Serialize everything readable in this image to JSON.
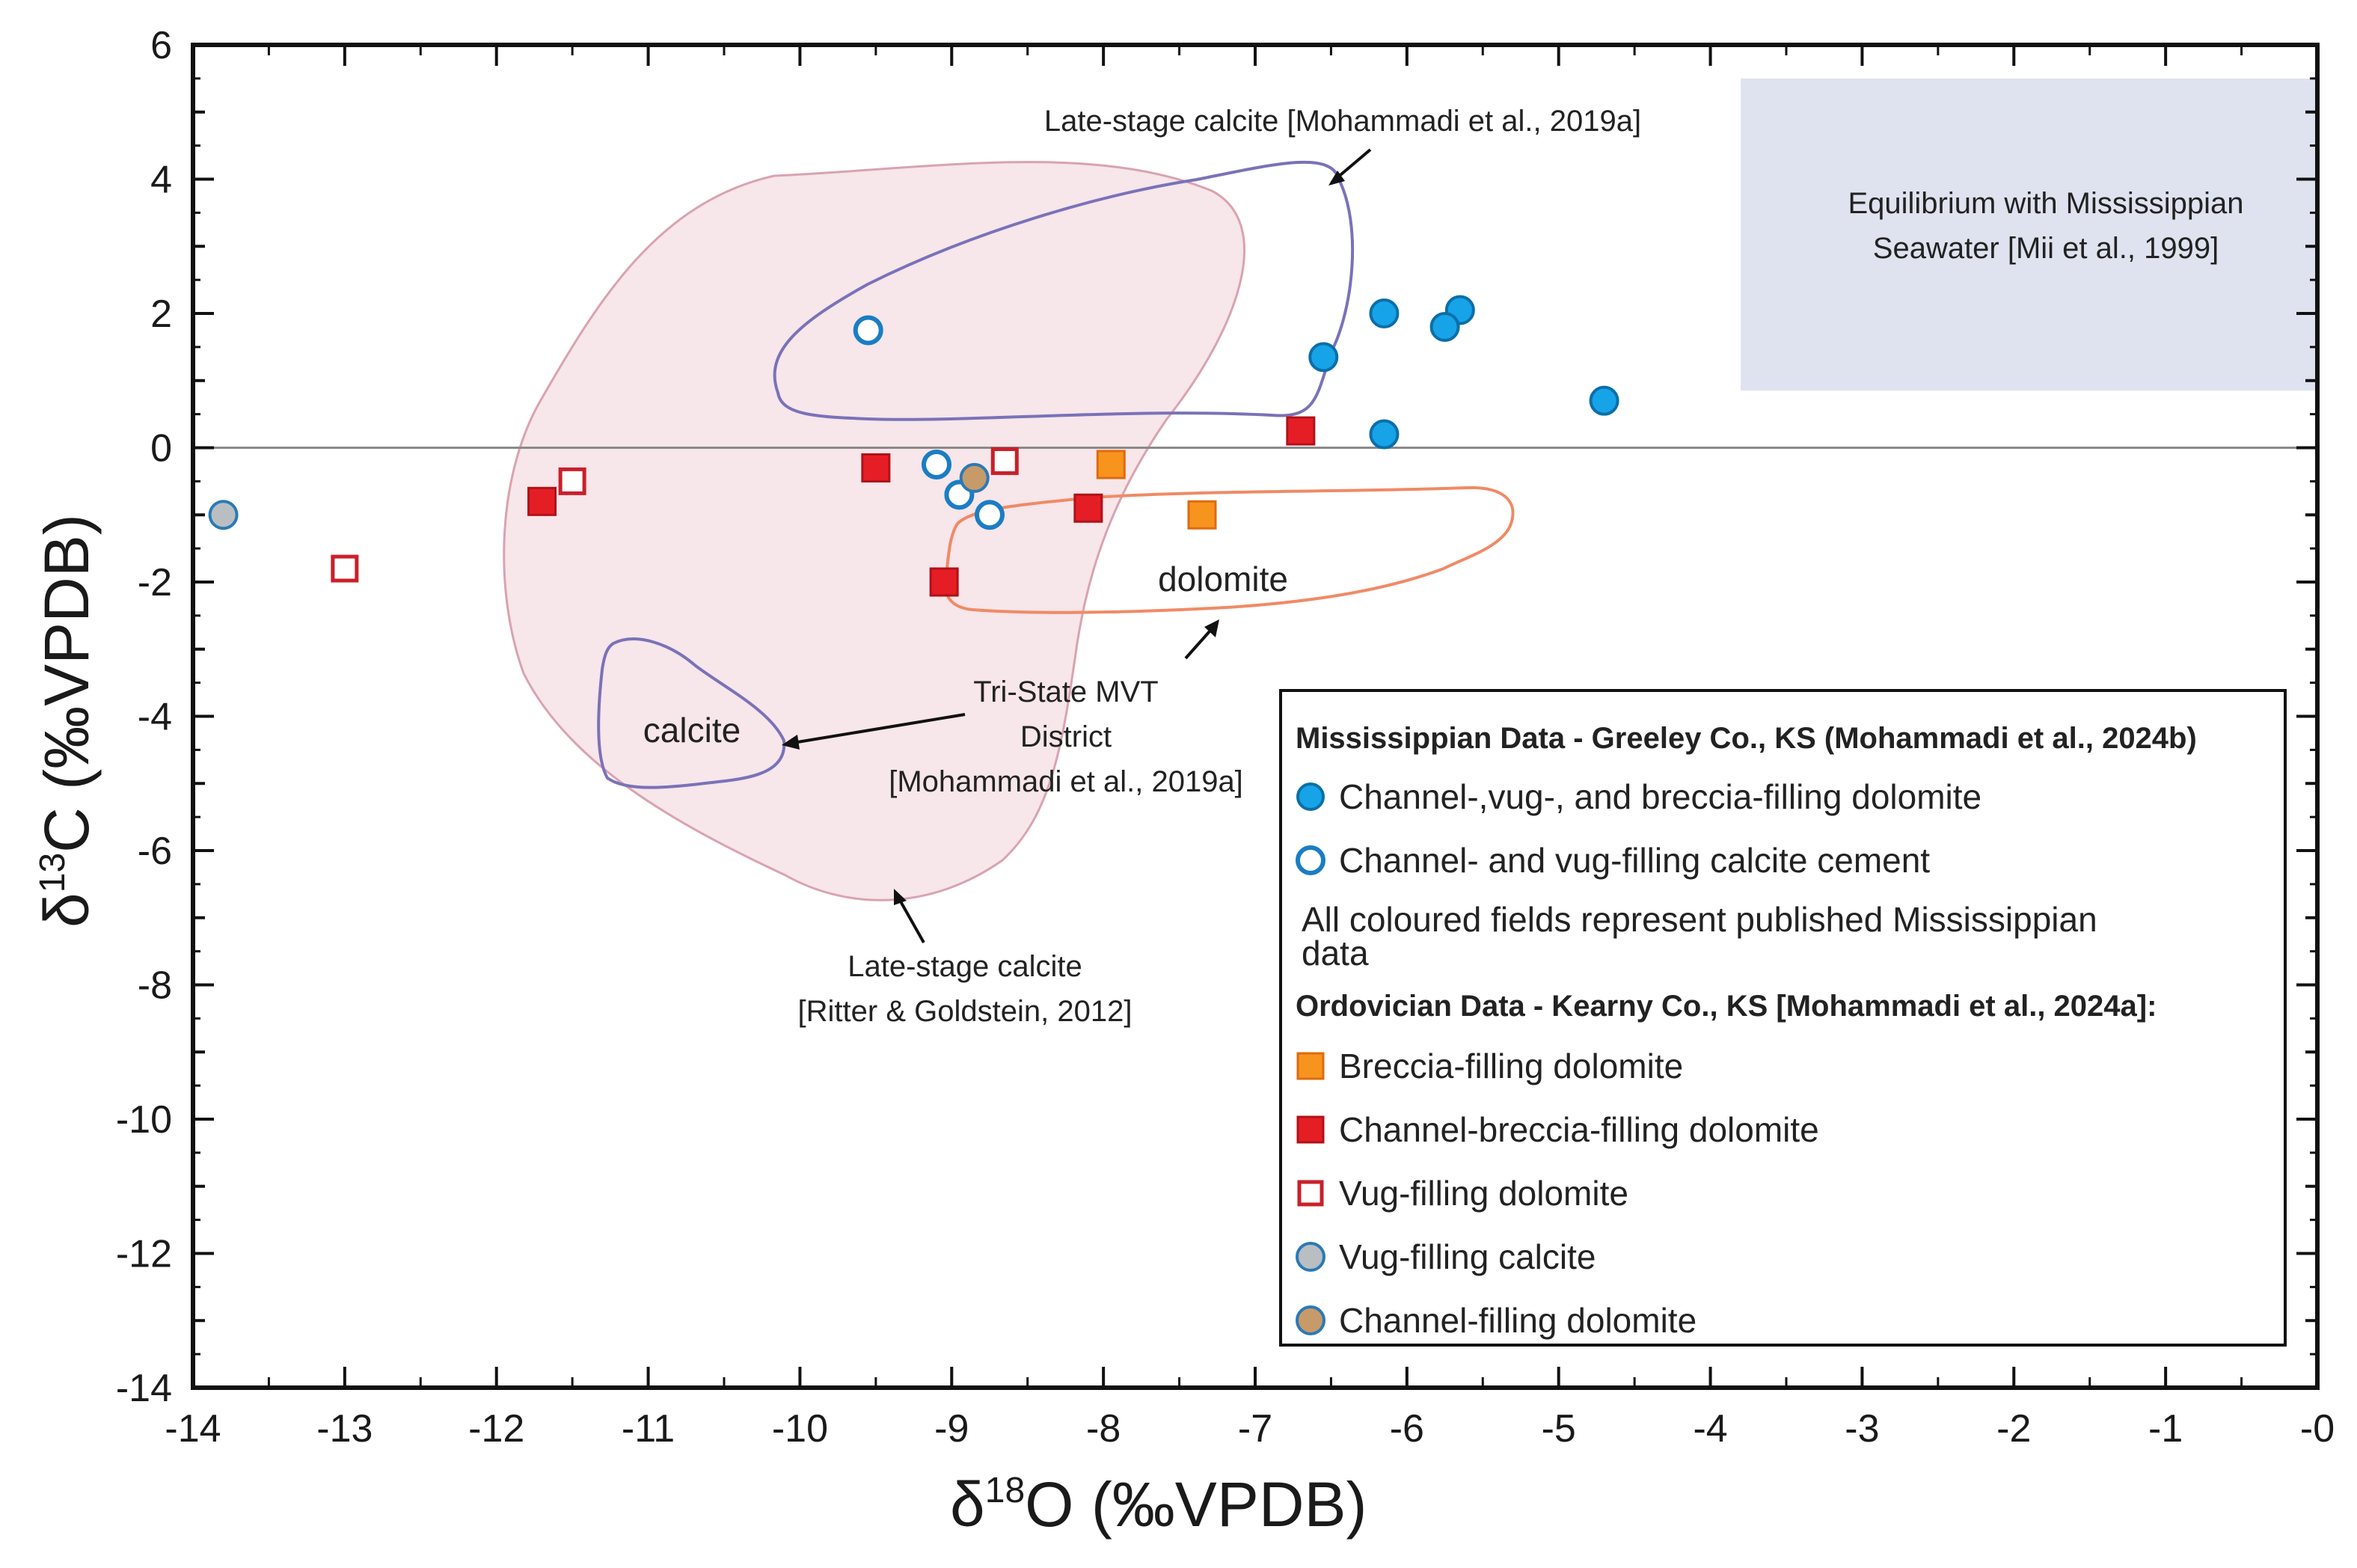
{
  "chart_data": {
    "type": "scatter",
    "xlabel": "δ18O (‰VPDB)",
    "ylabel": "δ13C (‰VPDB)",
    "xlabel_parts": {
      "delta": "δ",
      "sup": "18",
      "rest": "O (‰VPDB)"
    },
    "ylabel_parts": {
      "delta": "δ",
      "sup": "13",
      "rest": "C (‰VPDB)"
    },
    "xlim": [
      -14,
      0
    ],
    "ylim": [
      -14,
      6
    ],
    "xticks": [
      "-14",
      "-13",
      "-12",
      "-11",
      "-10",
      "-9",
      "-8",
      "-7",
      "-6",
      "-5",
      "-4",
      "-3",
      "-2",
      "-1",
      "-0"
    ],
    "yticks": [
      "-14",
      "-12",
      "-10",
      "-8",
      "-6",
      "-4",
      "-2",
      "0",
      "2",
      "4",
      "6"
    ],
    "zero_line": 0,
    "regions": {
      "seawater_box": {
        "x": [
          -3.8,
          0
        ],
        "y": [
          0.85,
          5.5
        ],
        "label_line1": "Equilibrium with Mississippian",
        "label_line2": "Seawater [Mii et al., 1999]"
      },
      "late_calcite_ritter": {
        "label_line1": "Late-stage calcite",
        "label_line2": "[Ritter & Goldstein, 2012]"
      },
      "late_calcite_mohammadi": {
        "label": "Late-stage calcite [Mohammadi et al., 2019a]"
      },
      "calcite_field": {
        "label": "calcite"
      },
      "dolomite_field": {
        "label": "dolomite"
      },
      "tristate_label": {
        "line1": "Tri-State MVT",
        "line2": "District",
        "line3": "[Mohammadi et al., 2019a]"
      }
    },
    "series": [
      {
        "name": "Channel-,vug-, and breccia-filling dolomite",
        "marker": "circle",
        "fill": "#17a3e8",
        "stroke": "#0b6fa8",
        "points": [
          [
            -6.15,
            2.0
          ],
          [
            -5.65,
            2.05
          ],
          [
            -5.75,
            1.8
          ],
          [
            -6.55,
            1.35
          ],
          [
            -6.15,
            0.2
          ],
          [
            -4.7,
            0.7
          ]
        ]
      },
      {
        "name": "Channel- and vug-filling calcite cement",
        "marker": "circle-open",
        "fill": "#ffffff",
        "stroke": "#1a7dc4",
        "points": [
          [
            -9.55,
            1.75
          ],
          [
            -9.1,
            -0.25
          ],
          [
            -8.95,
            -0.7
          ],
          [
            -8.75,
            -1.0
          ]
        ]
      },
      {
        "name": "Breccia-filling dolomite",
        "marker": "square",
        "fill": "#f7941d",
        "stroke": "#e06a10",
        "points": [
          [
            -7.95,
            -0.25
          ],
          [
            -7.35,
            -1.0
          ]
        ]
      },
      {
        "name": "Channel-breccia-filling dolomite",
        "marker": "square",
        "fill": "#e51e25",
        "stroke": "#b01218",
        "points": [
          [
            -11.7,
            -0.8
          ],
          [
            -9.5,
            -0.3
          ],
          [
            -8.1,
            -0.9
          ],
          [
            -9.05,
            -2.0
          ],
          [
            -6.7,
            0.25
          ]
        ]
      },
      {
        "name": "Vug-filling dolomite",
        "marker": "square-open",
        "fill": "#ffffff",
        "stroke": "#c9202a",
        "points": [
          [
            -11.5,
            -0.5
          ],
          [
            -13.0,
            -1.8
          ],
          [
            -8.65,
            -0.2
          ]
        ]
      },
      {
        "name": "Vug-filling calcite",
        "marker": "circle",
        "fill": "#b9bec2",
        "stroke": "#2a7ab5",
        "points": [
          [
            -13.8,
            -1.0
          ]
        ]
      },
      {
        "name": "Channel-filling dolomite",
        "marker": "circle",
        "fill": "#c79a6a",
        "stroke": "#2a7ab5",
        "points": [
          [
            -8.85,
            -0.45
          ]
        ]
      }
    ],
    "legend": {
      "position": "bottom-right",
      "group1_title": "Mississippian Data - Greeley Co., KS (Mohammadi et al., 2024b)",
      "note_line1": "All coloured fields represent published Mississippian",
      "note_line2": "data",
      "group2_title": "Ordovician Data - Kearny Co., KS [Mohammadi et al., 2024a]:",
      "entries": [
        "Channel-,vug-, and breccia-filling dolomite",
        "Channel- and vug-filling calcite cement",
        "Breccia-filling dolomite",
        "Channel-breccia-filling dolomite",
        "Vug-filling dolomite",
        "Vug-filling calcite",
        "Channel-filling dolomite"
      ]
    },
    "colors": {
      "ritter_fill": "#f4dde3",
      "ritter_stroke": "#d9a3b0",
      "purple_stroke": "#7a72b8",
      "orange_stroke": "#f08a66",
      "seawater_fill": "#dfe3ef"
    }
  }
}
